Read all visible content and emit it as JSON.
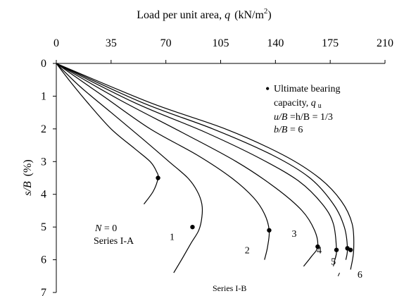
{
  "chart_data": {
    "type": "line",
    "xlabel": {
      "text": "Load per unit area, ",
      "var": "q",
      "unit": "(kN/m",
      "sup": "2",
      "close": ")"
    },
    "ylabel": {
      "var": "s/B",
      "unit": "(%)"
    },
    "x_axis_position": "top",
    "y_axis_inverted": true,
    "xlim": [
      0,
      210
    ],
    "ylim": [
      0,
      7
    ],
    "x_ticks": [
      "0",
      "35",
      "70",
      "105",
      "140",
      "175",
      "210"
    ],
    "y_ticks": [
      "0",
      "1",
      "2",
      "3",
      "4",
      "5",
      "6",
      "7"
    ],
    "grid": false,
    "legend": {
      "bullet": "•",
      "line1": "Ultimate bearing",
      "line2_text": "capacity, ",
      "line2_var": "q",
      "line2_sub": "u",
      "ratio1": "u/B",
      "ratio1_rest": " =h/B = 1/3",
      "ratio2": "b/B",
      "ratio2_rest": " =  6"
    },
    "annotations": {
      "n_label_var": "N",
      "n_label_rest": " = 0",
      "series_a": "Series I-A",
      "series_b": "Series I-B"
    },
    "series": [
      {
        "name": "0",
        "points": [
          [
            0,
            0
          ],
          [
            8,
            0.5
          ],
          [
            20,
            1.2
          ],
          [
            35,
            2.0
          ],
          [
            50,
            2.6
          ],
          [
            60,
            3.0
          ],
          [
            64,
            3.3
          ],
          [
            65,
            3.5
          ],
          [
            62,
            3.9
          ],
          [
            56,
            4.3
          ]
        ],
        "ultimate": [
          65,
          3.5
        ],
        "label_pos": null
      },
      {
        "name": "1",
        "points": [
          [
            0,
            0
          ],
          [
            15,
            0.7
          ],
          [
            35,
            1.5
          ],
          [
            55,
            2.3
          ],
          [
            72,
            3.0
          ],
          [
            84,
            3.5
          ],
          [
            90,
            3.9
          ],
          [
            93,
            4.3
          ],
          [
            93,
            4.7
          ],
          [
            91,
            5.1
          ],
          [
            86,
            5.5
          ],
          [
            80,
            6.0
          ],
          [
            75,
            6.4
          ]
        ],
        "ultimate": [
          87,
          5.0
        ],
        "label_pos": [
          74,
          5.4
        ]
      },
      {
        "name": "2",
        "points": [
          [
            0,
            0
          ],
          [
            30,
            1.0
          ],
          [
            60,
            2.0
          ],
          [
            90,
            2.8
          ],
          [
            112,
            3.5
          ],
          [
            126,
            4.1
          ],
          [
            133,
            4.6
          ],
          [
            136,
            5.1
          ],
          [
            135,
            5.6
          ],
          [
            133,
            6.0
          ]
        ],
        "ultimate": [
          136,
          5.1
        ],
        "label_pos": [
          122,
          5.8
        ]
      },
      {
        "name": "3",
        "points": [
          [
            0,
            0
          ],
          [
            40,
            1.1
          ],
          [
            80,
            2.1
          ],
          [
            115,
            3.0
          ],
          [
            140,
            3.8
          ],
          [
            157,
            4.5
          ],
          [
            165,
            5.1
          ],
          [
            167,
            5.6
          ],
          [
            163,
            5.9
          ],
          [
            158,
            6.2
          ]
        ],
        "ultimate": [
          167,
          5.6
        ],
        "label_pos": [
          152,
          5.3
        ]
      },
      {
        "name": "4",
        "points": [
          [
            0,
            0
          ],
          [
            50,
            1.2
          ],
          [
            95,
            2.1
          ],
          [
            130,
            2.9
          ],
          [
            155,
            3.6
          ],
          [
            170,
            4.3
          ],
          [
            177,
            4.9
          ],
          [
            179,
            5.7
          ],
          [
            178,
            6.0
          ]
        ],
        "ultimate": [
          179,
          5.7
        ],
        "label_pos": [
          168,
          5.8
        ]
      },
      {
        "name": "5",
        "points": [
          [
            0,
            0
          ],
          [
            55,
            1.2
          ],
          [
            100,
            2.0
          ],
          [
            138,
            2.8
          ],
          [
            162,
            3.5
          ],
          [
            177,
            4.3
          ],
          [
            184,
            5.0
          ],
          [
            186,
            5.65
          ],
          [
            185,
            6.0
          ]
        ],
        "ultimate": [
          186,
          5.65
        ],
        "label_pos": [
          177,
          6.15
        ],
        "extra_stroke": [
          [
            179,
            5.8
          ],
          [
            177,
            6.2
          ]
        ]
      },
      {
        "name": "6",
        "points": [
          [
            0,
            0
          ],
          [
            60,
            1.2
          ],
          [
            108,
            2.0
          ],
          [
            145,
            2.8
          ],
          [
            168,
            3.5
          ],
          [
            182,
            4.2
          ],
          [
            189,
            4.9
          ],
          [
            190,
            5.7
          ],
          [
            188,
            6.3
          ]
        ],
        "ultimate": [
          188,
          5.7
        ],
        "label_pos": [
          194,
          6.55
        ],
        "extra_stroke": [
          [
            181,
            6.4
          ],
          [
            180,
            6.5
          ]
        ]
      }
    ]
  }
}
